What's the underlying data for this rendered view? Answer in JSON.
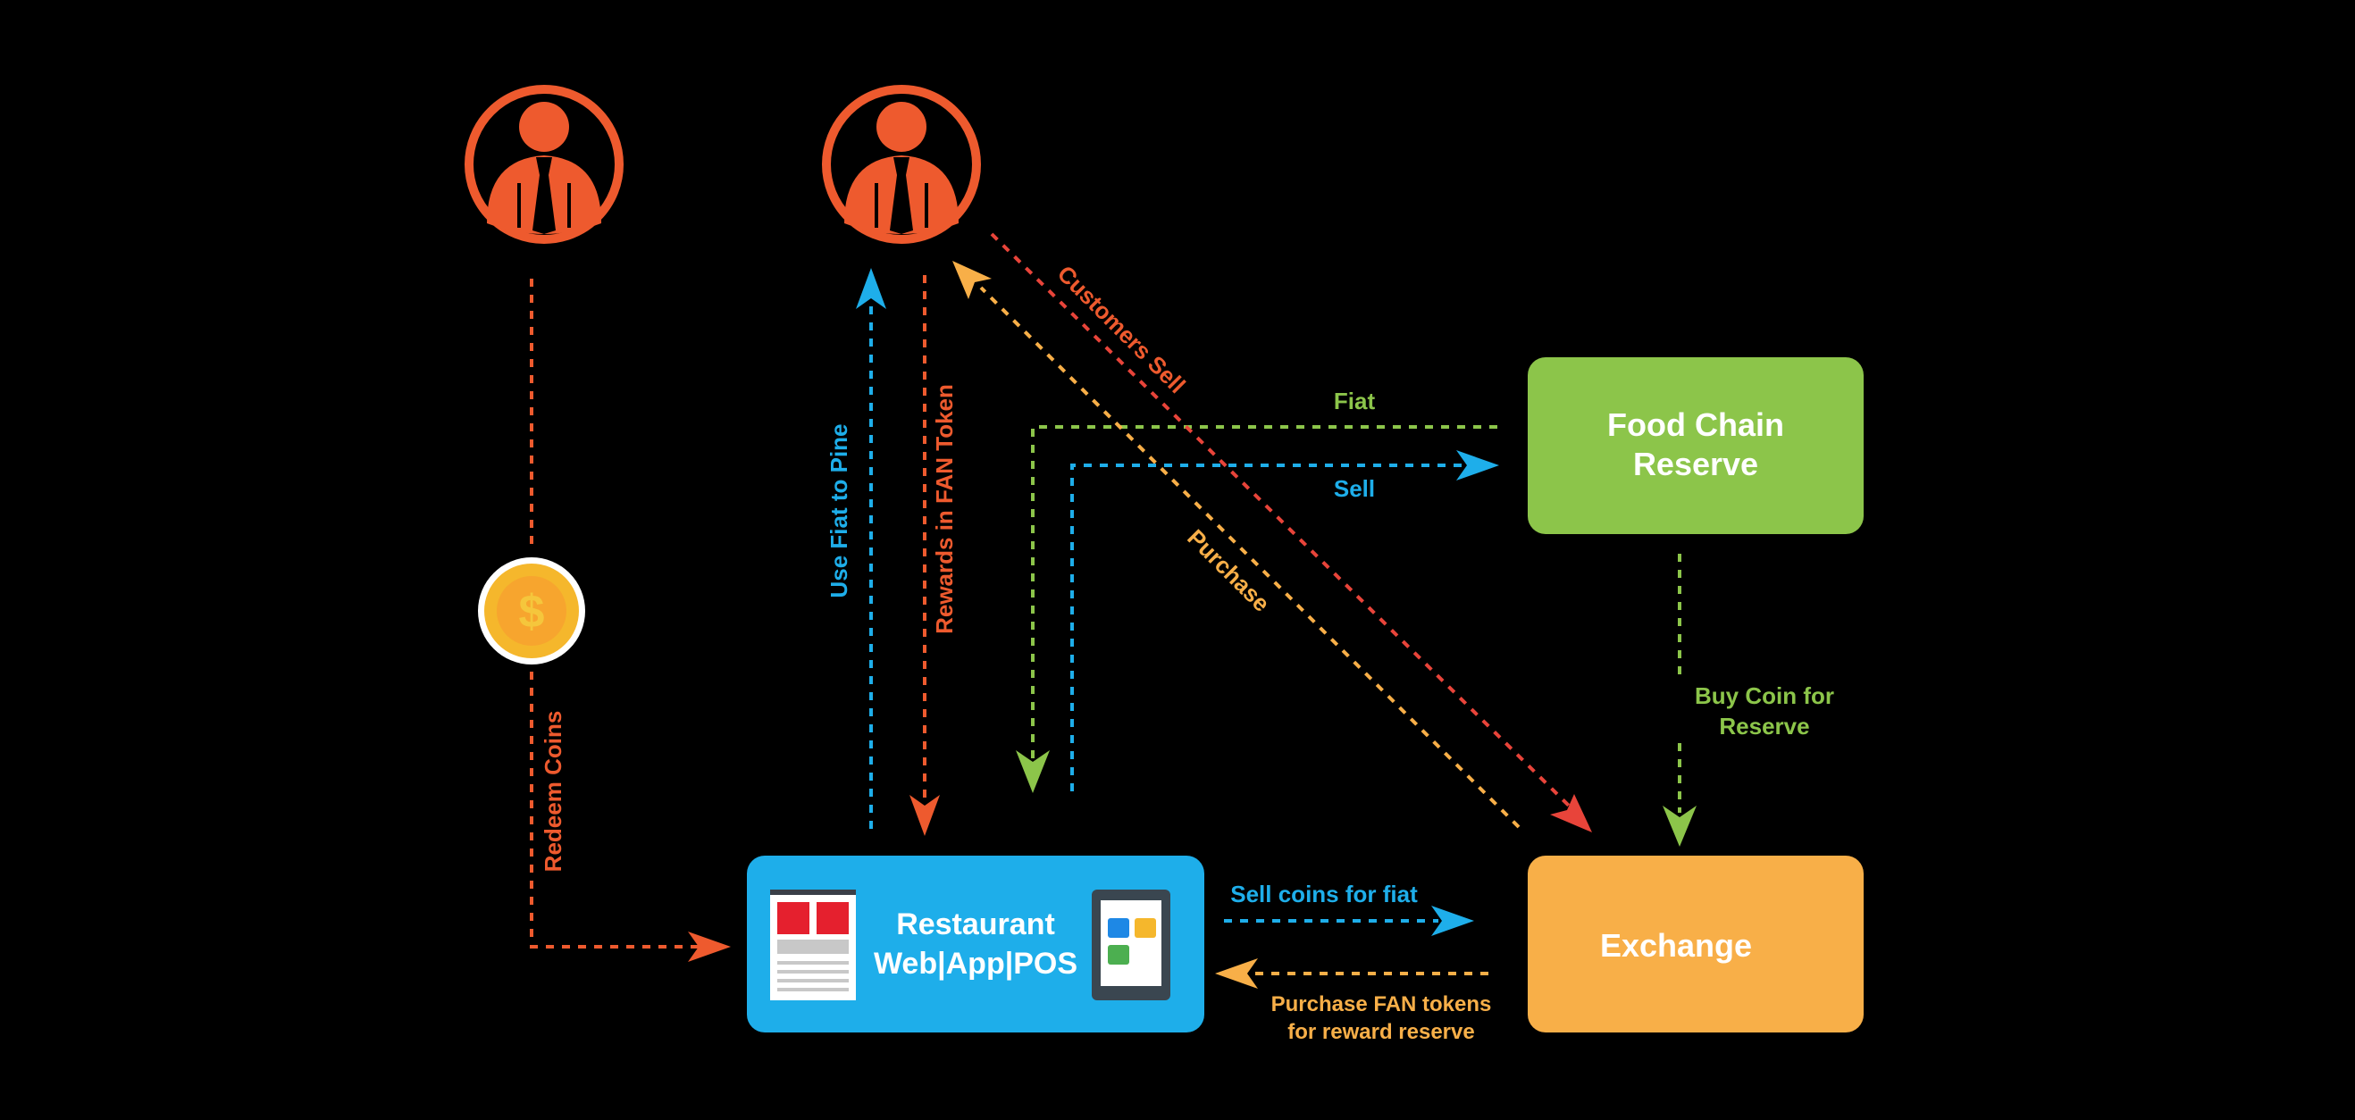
{
  "colors": {
    "background": "#000000",
    "orange_red": "#EE5A2E",
    "blue": "#1EAEEA",
    "green": "#8CC54A",
    "amber": "#F8AF48",
    "red_arrow": "#E8443A",
    "coin_gold": "#F5B72C",
    "coin_inner": "#F7A52E"
  },
  "nodes": {
    "food_chain_reserve": {
      "line1": "Food Chain",
      "line2": "Reserve"
    },
    "exchange": {
      "label": "Exchange"
    },
    "restaurant": {
      "line1": "Restaurant",
      "line2": "Web|App|POS"
    },
    "coin": {
      "symbol": "$"
    }
  },
  "icons": {
    "person_left": "person-icon",
    "person_center": "person-icon",
    "coin": "dollar-coin-icon",
    "menu": "menu-document-icon",
    "tablet": "tablet-icon"
  },
  "edges": {
    "fiat": "Fiat",
    "sell": "Sell",
    "customers_sell": "Customers Sell",
    "purchase": "Purchase",
    "use_fiat_to_pine": "Use Fiat to Pine",
    "rewards_in_fan_token": "Rewards in FAN Token",
    "redeem_coins": "Redeem Coins",
    "buy_coin_for_reserve_line1": "Buy Coin for",
    "buy_coin_for_reserve_line2": "Reserve",
    "sell_coins_for_fiat": "Sell coins for fiat",
    "purchase_fan_tokens_line1": "Purchase FAN tokens",
    "purchase_fan_tokens_line2": "for reward reserve"
  }
}
